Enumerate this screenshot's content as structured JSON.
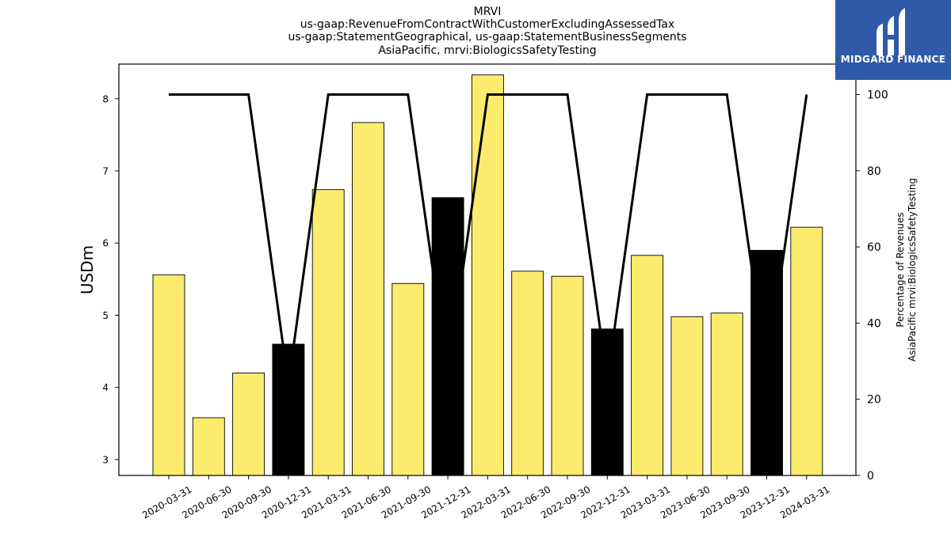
{
  "chart_data": {
    "type": "bar",
    "title_lines": [
      "MRVI",
      "us-gaap:RevenueFromContractWithCustomerExcludingAssessedTax",
      "us-gaap:StatementGeographical, us-gaap:StatementBusinessSegments",
      "AsiaPacific, mrvi:BiologicsSafetyTesting"
    ],
    "categories": [
      "2020-03-31",
      "2020-06-30",
      "2020-09-30",
      "2020-12-31",
      "2021-03-31",
      "2021-06-30",
      "2021-09-30",
      "2021-12-31",
      "2022-03-31",
      "2022-06-30",
      "2022-09-30",
      "2022-12-31",
      "2023-03-31",
      "2023-06-30",
      "2023-09-30",
      "2023-12-31",
      "2024-03-31"
    ],
    "series": [
      {
        "type": "bar",
        "axis": "left",
        "values": [
          5.56,
          3.58,
          4.2,
          4.6,
          6.74,
          7.67,
          5.44,
          6.63,
          8.33,
          5.61,
          5.54,
          4.81,
          5.83,
          4.98,
          5.03,
          5.9,
          6.22
        ],
        "colors": [
          "#fdeb6e",
          "#fdeb6e",
          "#fdeb6e",
          "#000000",
          "#fdeb6e",
          "#fdeb6e",
          "#fdeb6e",
          "#000000",
          "#fdeb6e",
          "#fdeb6e",
          "#fdeb6e",
          "#000000",
          "#fdeb6e",
          "#fdeb6e",
          "#fdeb6e",
          "#000000",
          "#fdeb6e"
        ]
      },
      {
        "type": "line",
        "axis": "right",
        "color": "#000000",
        "values": [
          100,
          100,
          100,
          24,
          100,
          100,
          100,
          26,
          100,
          100,
          100,
          25,
          100,
          100,
          100,
          27,
          100
        ]
      }
    ],
    "ylabel": "USDm",
    "ylim": [
      2.78,
      8.48
    ],
    "yticks": [
      3,
      4,
      5,
      6,
      7,
      8
    ],
    "y2label_lines": [
      "Percentage of Revenues",
      "AsiaPacific mrvi:BiologicsSafetyTesting"
    ],
    "y2lim": [
      0,
      108
    ],
    "y2ticks": [
      0,
      20,
      40,
      60,
      80,
      100
    ],
    "grid": false
  },
  "logo": {
    "text": "MIDGARD FINANCE",
    "color": "#2e5aa8"
  }
}
